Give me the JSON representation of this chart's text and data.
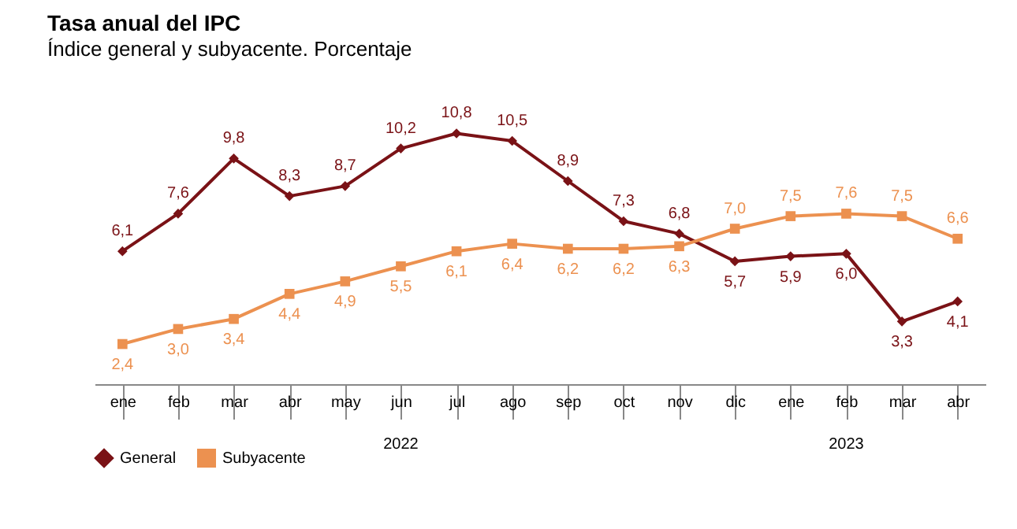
{
  "chart_data": {
    "type": "line",
    "title": "Tasa anual del IPC",
    "subtitle": "Índice general y subyacente. Porcentaje",
    "categories": [
      "ene",
      "feb",
      "mar",
      "abr",
      "may",
      "jun",
      "jul",
      "ago",
      "sep",
      "oct",
      "nov",
      "dic",
      "ene",
      "feb",
      "mar",
      "abr"
    ],
    "annotations": [
      "2022",
      "2023"
    ],
    "series": [
      {
        "name": "General",
        "color": "#7a1216",
        "marker": "diamond",
        "values": [
          6.1,
          7.6,
          9.8,
          8.3,
          8.7,
          10.2,
          10.8,
          10.5,
          8.9,
          7.3,
          6.8,
          5.7,
          5.9,
          6.0,
          3.3,
          4.1
        ],
        "value_labels": [
          "6,1",
          "7,6",
          "9,8",
          "8,3",
          "8,7",
          "10,2",
          "10,8",
          "10,5",
          "8,9",
          "7,3",
          "6,8",
          "5,7",
          "5,9",
          "6,0",
          "3,3",
          "4,1"
        ]
      },
      {
        "name": "Subyacente",
        "color": "#ec9150",
        "marker": "square",
        "values": [
          2.4,
          3.0,
          3.4,
          4.4,
          4.9,
          5.5,
          6.1,
          6.4,
          6.2,
          6.2,
          6.3,
          7.0,
          7.5,
          7.6,
          7.5,
          6.6
        ],
        "value_labels": [
          "2,4",
          "3,0",
          "3,4",
          "4,4",
          "4,9",
          "5,5",
          "6,1",
          "6,4",
          "6,2",
          "6,2",
          "6,3",
          "7,0",
          "7,5",
          "7,6",
          "7,5",
          "6,6"
        ]
      }
    ],
    "legend": "bottom"
  }
}
